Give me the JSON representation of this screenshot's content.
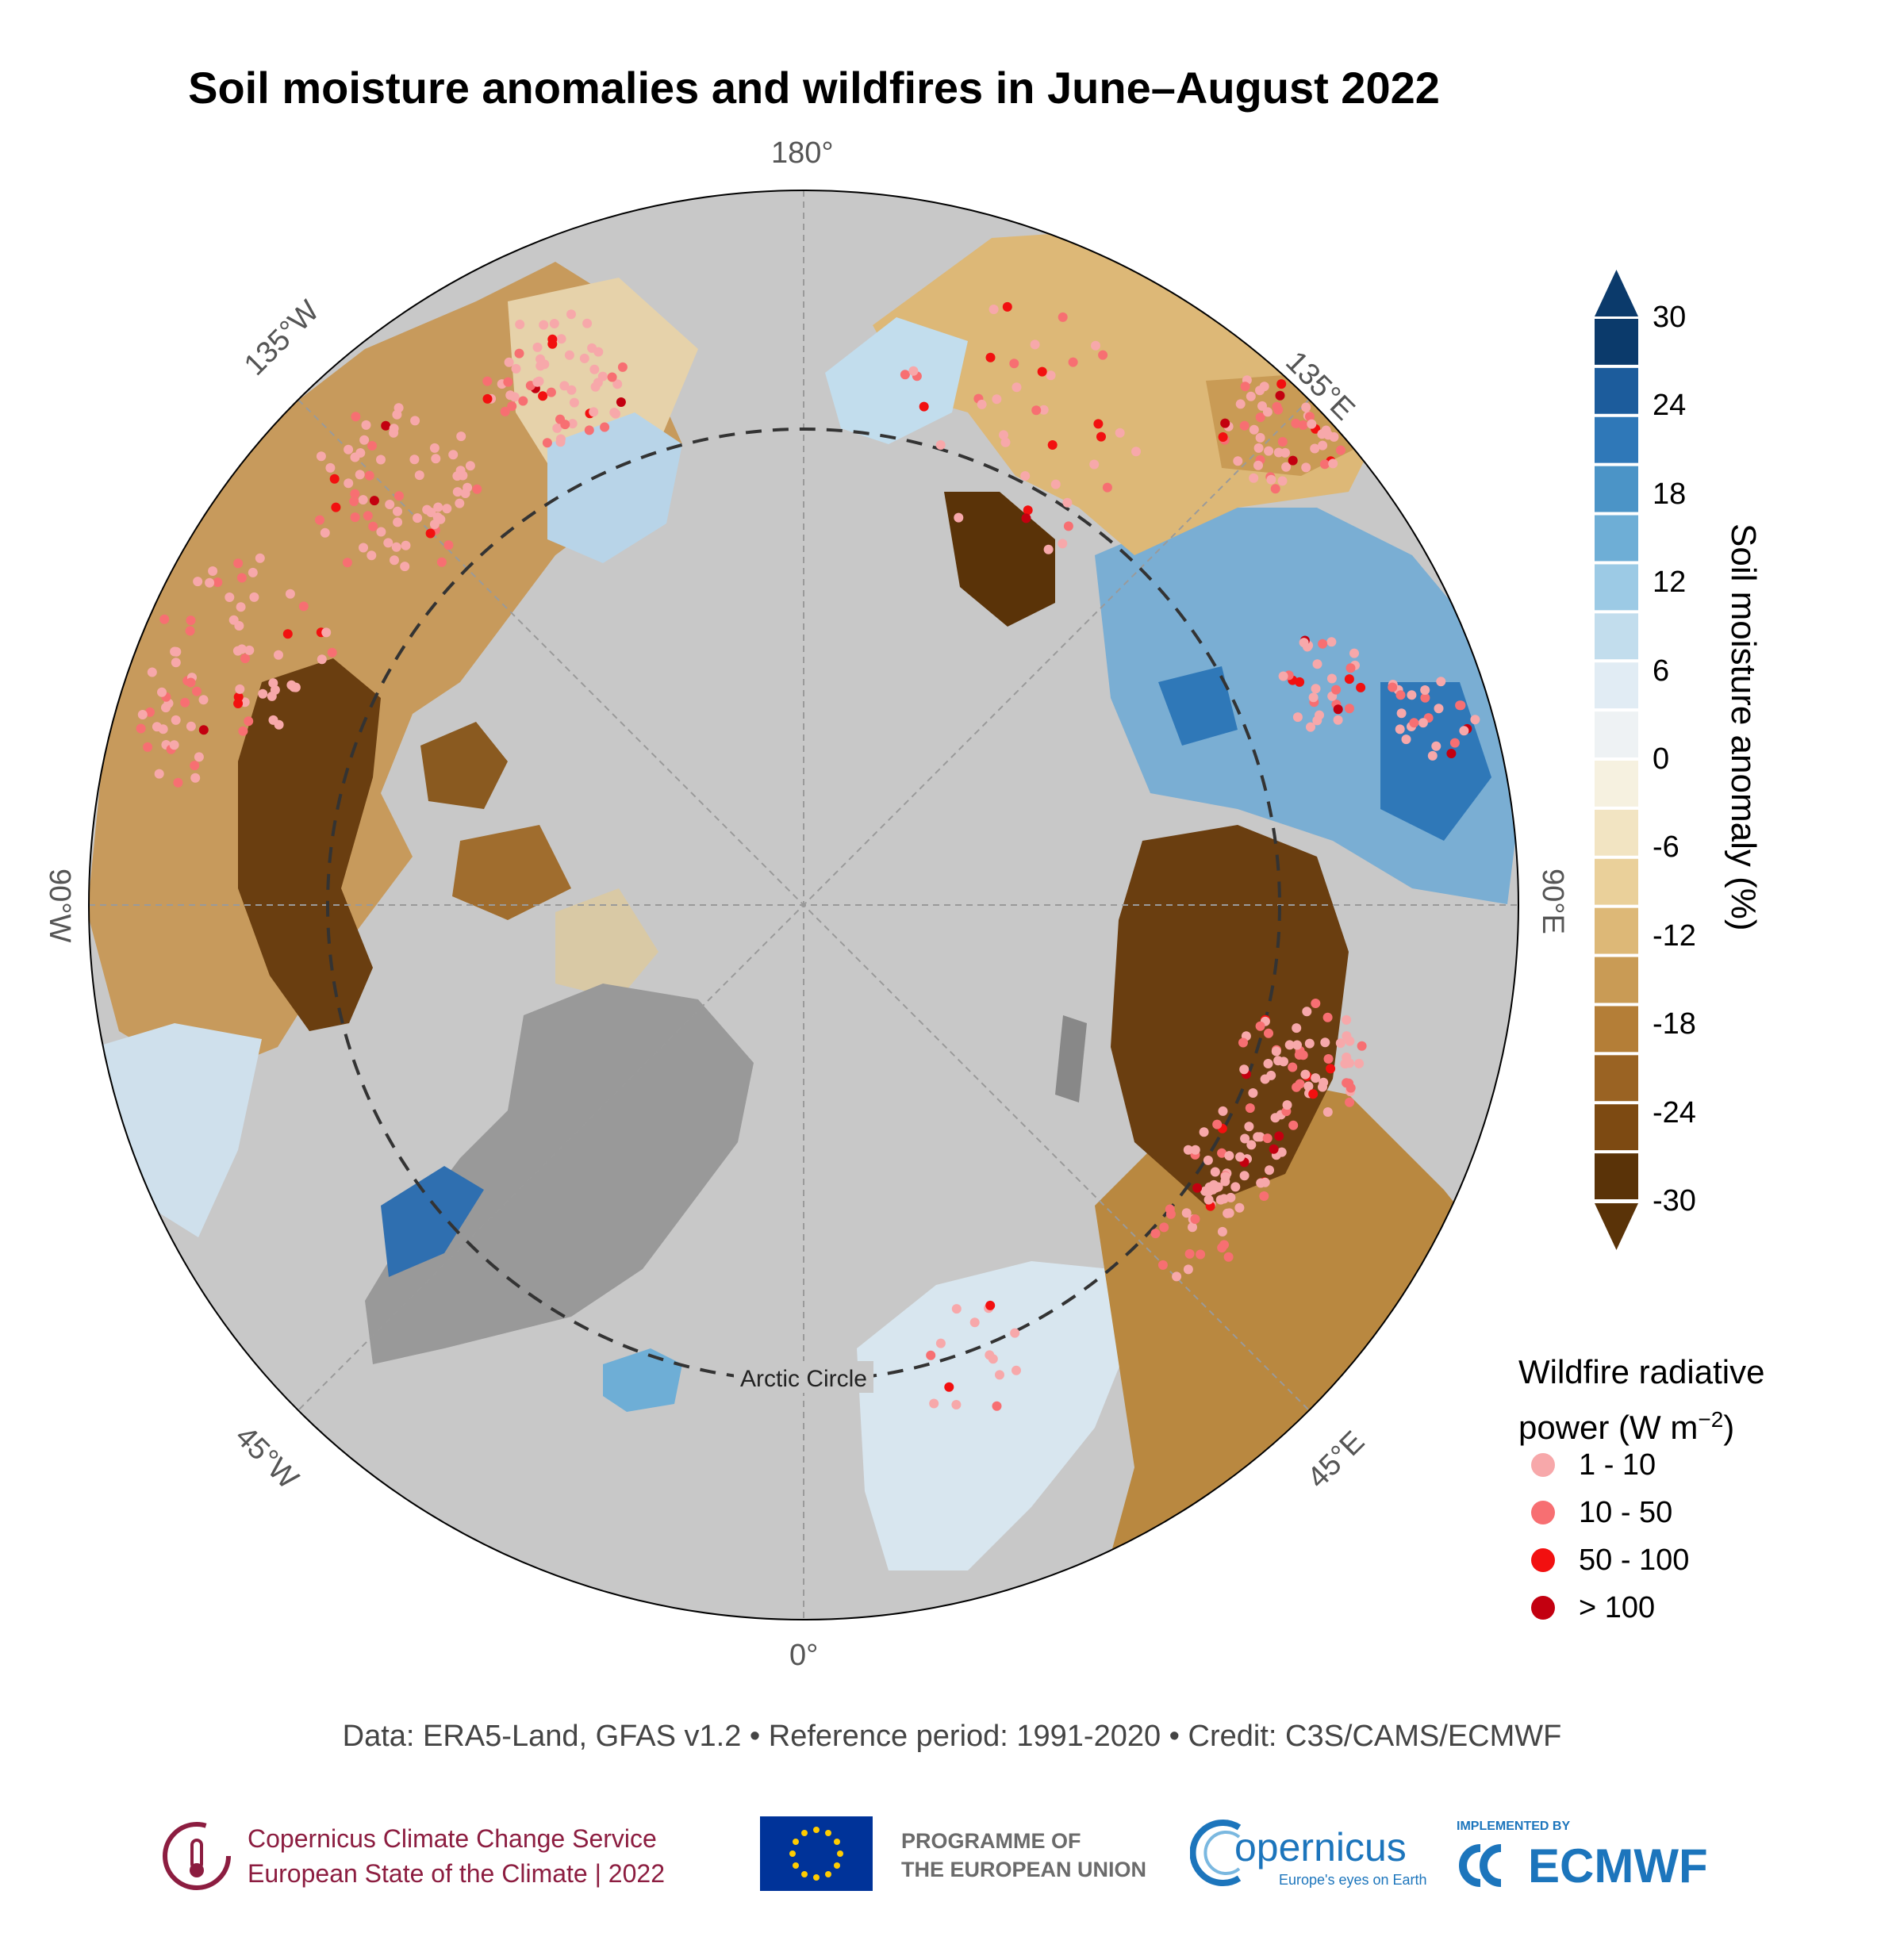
{
  "title": "Soil moisture anomalies and wildfires in June–August 2022",
  "map": {
    "projection": "north polar stereographic",
    "longitude_labels": {
      "top": "180°",
      "bottom": "0°",
      "left": "90°W",
      "right": "90°E",
      "upper_left": "135°W",
      "upper_right": "135°E",
      "lower_left": "45°W",
      "lower_right": "45°E"
    },
    "arctic_circle_label": "Arctic Circle",
    "ocean_color": "#c8c8c8",
    "ice_sheet_color": "#999999"
  },
  "colorbar": {
    "title": "Soil moisture anomaly (%)",
    "ticks": [
      "30",
      "24",
      "18",
      "12",
      "6",
      "0",
      "-6",
      "-12",
      "-18",
      "-24",
      "-30"
    ],
    "colors": [
      "#0b3a6b",
      "#1c5c9c",
      "#2f78b8",
      "#4b94c7",
      "#6eaed6",
      "#9ccae5",
      "#c2dded",
      "#e1ecf4",
      "#eef2f4",
      "#f6f1e0",
      "#f2e4c2",
      "#ead09a",
      "#ddb877",
      "#c99b55",
      "#b47e37",
      "#9a6323",
      "#7d4a12",
      "#5a3308"
    ],
    "over_color": "#0b3a6b",
    "under_color": "#5a3308"
  },
  "wildfire_legend": {
    "title_line1": "Wildfire radiative",
    "title_line2_prefix": "power (W m",
    "title_line2_sup": "−2",
    "title_line2_suffix": ")",
    "items": [
      {
        "label": "1 - 10",
        "color": "#f7a8aa"
      },
      {
        "label": "10 - 50",
        "color": "#f76f72"
      },
      {
        "label": "50 - 100",
        "color": "#f21010"
      },
      {
        "label": "> 100",
        "color": "#c30010"
      }
    ]
  },
  "credit": "Data: ERA5-Land, GFAS v1.2 • Reference period: 1991-2020 • Credit: C3S/CAMS/ECMWF",
  "logos": {
    "copernicus_ccs_line1": "Copernicus Climate Change Service",
    "copernicus_ccs_line2": "European State of the Climate | 2022",
    "eu_line1": "PROGRAMME OF",
    "eu_line2": "THE EUROPEAN UNION",
    "copernicus": "opernicus",
    "copernicus_tagline": "Europe's eyes on Earth",
    "ecmwf_small": "IMPLEMENTED BY",
    "ecmwf": "ECMWF"
  }
}
